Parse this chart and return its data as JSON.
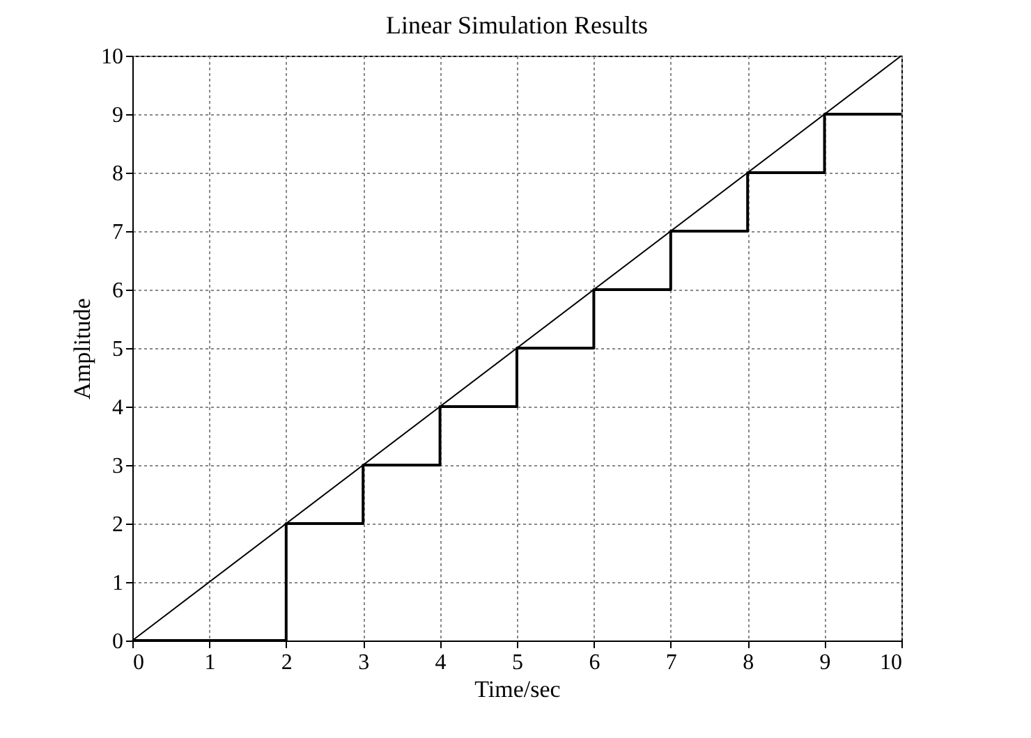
{
  "chart_data": {
    "type": "line",
    "title": "Linear Simulation Results",
    "xlabel": "Time/sec",
    "ylabel": "Amplitude",
    "xlim": [
      0,
      10
    ],
    "ylim": [
      0,
      10
    ],
    "xticks": [
      0,
      1,
      2,
      3,
      4,
      5,
      6,
      7,
      8,
      9,
      10
    ],
    "yticks": [
      0,
      1,
      2,
      3,
      4,
      5,
      6,
      7,
      8,
      9,
      10
    ],
    "grid": true,
    "marker": "none",
    "series": [
      {
        "color": "#000000",
        "x": [
          0,
          10
        ],
        "values": [
          0,
          10
        ]
      },
      {
        "type": "step",
        "color": "#000000",
        "x": [
          0,
          2,
          3,
          4,
          5,
          6,
          7,
          8,
          9,
          10
        ],
        "values": [
          0,
          2,
          3,
          4,
          5,
          6,
          7,
          8,
          9,
          9
        ]
      }
    ]
  }
}
